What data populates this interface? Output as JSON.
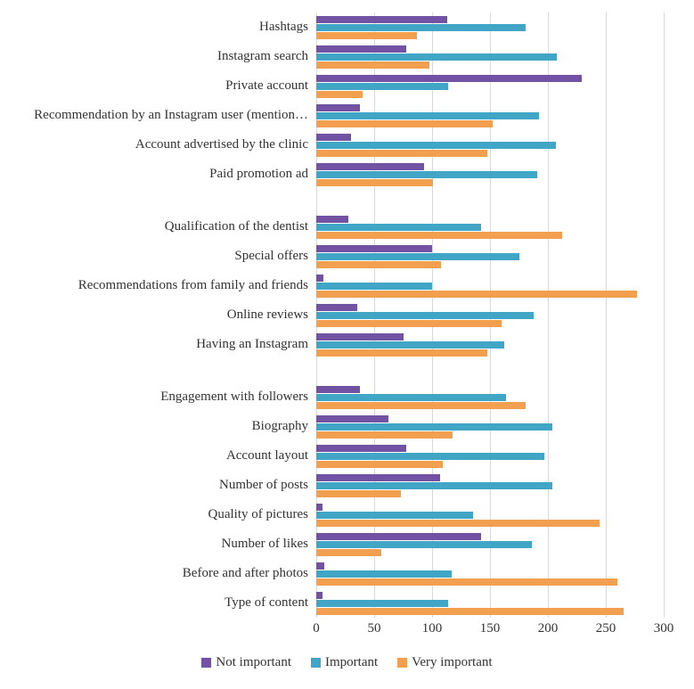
{
  "chart_data": {
    "type": "bar",
    "orientation": "horizontal",
    "title": "",
    "xlabel": "",
    "ylabel": "",
    "xlim": [
      0,
      300
    ],
    "xticks": [
      0,
      50,
      100,
      150,
      200,
      250,
      300
    ],
    "grid": true,
    "legend_position": "bottom",
    "series": [
      {
        "key": "not-important",
        "name": "Not important",
        "color": "#7252a2"
      },
      {
        "key": "important",
        "name": "Important",
        "color": "#41a6c6"
      },
      {
        "key": "very-important",
        "name": "Very important",
        "color": "#f2a04f"
      }
    ],
    "series_order_note": "values arrays follow bar order top-to-bottom per category: Not important, Important, Very important",
    "groups": [
      {
        "rows": [
          {
            "label": "Hashtags",
            "values": [
              113,
              181,
              87
            ]
          },
          {
            "label": "Instagram search",
            "values": [
              78,
              208,
              98
            ]
          },
          {
            "label": "Private account",
            "values": [
              229,
              114,
              40
            ]
          },
          {
            "label": "Recommendation by an Instagram user (mention…",
            "values": [
              38,
              192,
              152
            ]
          },
          {
            "label": "Account advertised by the clinic",
            "values": [
              30,
              207,
              148
            ]
          },
          {
            "label": "Paid promotion ad",
            "values": [
              93,
              191,
              101
            ]
          }
        ]
      },
      {
        "rows": [
          {
            "label": "Qualification of the dentist",
            "values": [
              28,
              142,
              212
            ]
          },
          {
            "label": "Special offers",
            "values": [
              100,
              175,
              108
            ]
          },
          {
            "label": "Recommendations from family and friends",
            "values": [
              6,
              100,
              277
            ]
          },
          {
            "label": "Online reviews",
            "values": [
              35,
              188,
              160
            ]
          },
          {
            "label": "Having an Instagram",
            "values": [
              75,
              162,
              148
            ]
          }
        ]
      },
      {
        "rows": [
          {
            "label": "Engagement with followers",
            "values": [
              38,
              164,
              181
            ]
          },
          {
            "label": "Biography",
            "values": [
              62,
              204,
              118
            ]
          },
          {
            "label": "Account layout",
            "values": [
              78,
              197,
              109
            ]
          },
          {
            "label": "Number of posts",
            "values": [
              107,
              204,
              73
            ]
          },
          {
            "label": "Quality of pictures",
            "values": [
              5,
              135,
              245
            ]
          },
          {
            "label": "Number of likes",
            "values": [
              142,
              186,
              56
            ]
          },
          {
            "label": "Before and after photos",
            "values": [
              7,
              117,
              260
            ]
          },
          {
            "label": "Type of content",
            "values": [
              5,
              114,
              265
            ]
          }
        ]
      }
    ]
  }
}
